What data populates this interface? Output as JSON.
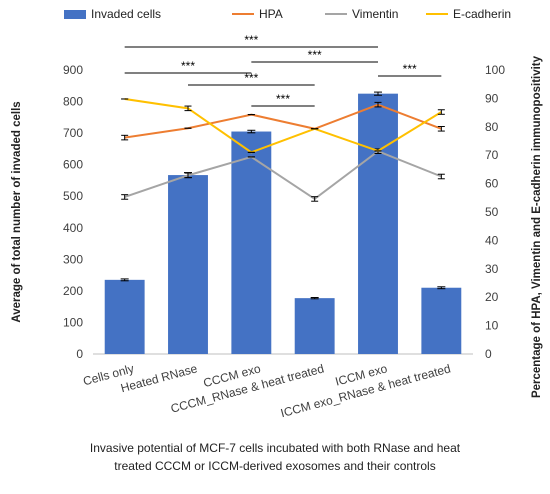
{
  "chart_data": {
    "type": "bar+line",
    "categories": [
      "Cells only",
      "Heated RNase",
      "CCCM exo",
      "CCCM_RNase & heat treated",
      "ICCM exo",
      "ICCM exo_RNase & heat treated"
    ],
    "bar_series": {
      "name": "Invaded cells",
      "color": "#4472C4",
      "values": [
        235,
        567,
        705,
        177,
        825,
        210
      ],
      "errors": [
        3,
        8,
        4,
        2,
        5,
        3
      ]
    },
    "line_series": [
      {
        "name": "HPA",
        "color": "#ED7D31",
        "values": [
          76.2,
          79.5,
          84.3,
          79.3,
          87.8,
          79.3
        ],
        "errors": [
          0.8,
          0,
          0,
          0,
          0.8,
          0.8
        ]
      },
      {
        "name": "Vimentin",
        "color": "#A5A5A5",
        "values": [
          55.3,
          62.9,
          69.4,
          54.6,
          71.4,
          62.5
        ],
        "errors": [
          0.8,
          0.8,
          0,
          0.8,
          0.8,
          0.8
        ]
      },
      {
        "name": "E-cadherin",
        "color": "#FFC000",
        "values": [
          89.8,
          86.5,
          71.0,
          79.3,
          71.5,
          85.2
        ],
        "errors": [
          0,
          0.8,
          0,
          0,
          0,
          0.8
        ]
      }
    ],
    "ylabel_left": "Average of total number of invaded cells",
    "ylabel_right": "Percentage of HPA, Vimentin and E-cadherin immunopositivity",
    "ylim_left": [
      0,
      900
    ],
    "yticks_left": [
      0,
      100,
      200,
      300,
      400,
      500,
      600,
      700,
      800,
      900
    ],
    "ylim_right": [
      0,
      100
    ],
    "yticks_right": [
      0,
      10,
      20,
      30,
      40,
      50,
      60,
      70,
      80,
      90,
      100
    ],
    "legend_position": "top",
    "significance_brackets": [
      {
        "from": 0,
        "to": 4,
        "label": "***"
      },
      {
        "from": 0,
        "to": 2,
        "label": "***"
      },
      {
        "from": 2,
        "to": 4,
        "label": "***"
      },
      {
        "from": 1,
        "to": 3,
        "label": "***"
      },
      {
        "from": 2,
        "to": 3,
        "label": "***"
      },
      {
        "from": 4,
        "to": 5,
        "label": "***"
      }
    ]
  },
  "caption": {
    "line1": "Invasive potential of MCF-7 cells incubated with both RNase and heat",
    "line2": "treated CCCM or ICCM-derived exosomes and their controls"
  }
}
